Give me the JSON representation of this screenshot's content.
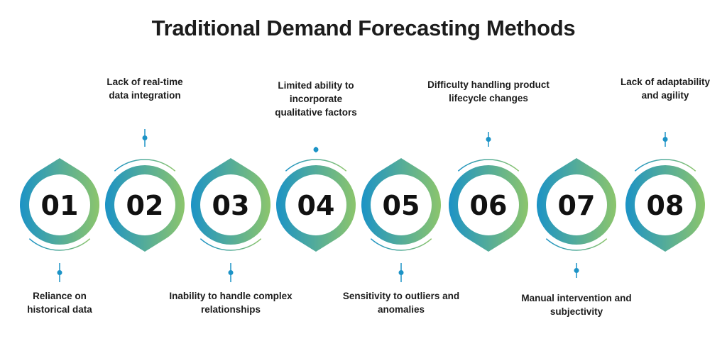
{
  "title": "Traditional Demand Forecasting Methods",
  "colors": {
    "gradient_start": "#1c93c6",
    "gradient_end": "#8cc56c",
    "text": "#111111"
  },
  "steps": [
    {
      "number": "01",
      "label": "Reliance on\nhistorical data"
    },
    {
      "number": "02",
      "label": "Lack of real-time\ndata integration"
    },
    {
      "number": "03",
      "label": "Inability to handle complex\nrelationships"
    },
    {
      "number": "04",
      "label": "Limited ability to\nincorporate\nqualitative factors"
    },
    {
      "number": "05",
      "label": "Sensitivity to outliers and\nanomalies"
    },
    {
      "number": "06",
      "label": "Difficulty handling product\nlifecycle changes"
    },
    {
      "number": "07",
      "label": "Manual intervention and\nsubjectivity"
    },
    {
      "number": "08",
      "label": "Lack of adaptability\nand agility"
    }
  ]
}
